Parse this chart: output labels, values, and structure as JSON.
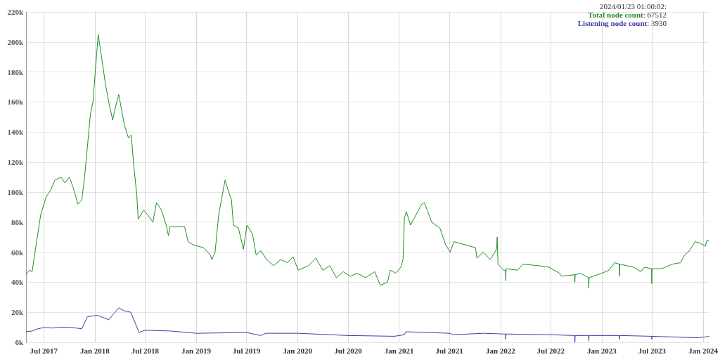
{
  "chart_data": {
    "type": "line",
    "annotations": [
      "2024/01/23 01:00:02:",
      ": 67512",
      ": 3930"
    ],
    "legend": "top right",
    "grid": true,
    "marker": "none",
    "line_style": "solid",
    "xlim": [
      "2017-04-28",
      "2024-01-23"
    ],
    "xticks": [
      {
        "value": "2017-07-01",
        "label": "Jul 2017"
      },
      {
        "value": "2018-01-01",
        "label": "Jan 2018"
      },
      {
        "value": "2018-07-01",
        "label": "Jul 2018"
      },
      {
        "value": "2019-01-01",
        "label": "Jan 2019"
      },
      {
        "value": "2019-07-01",
        "label": "Jul 2019"
      },
      {
        "value": "2020-01-01",
        "label": "Jan 2020"
      },
      {
        "value": "2020-07-01",
        "label": "Jul 2020"
      },
      {
        "value": "2021-01-01",
        "label": "Jan 2021"
      },
      {
        "value": "2021-07-01",
        "label": "Jul 2021"
      },
      {
        "value": "2022-01-01",
        "label": "Jan 2022"
      },
      {
        "value": "2022-07-01",
        "label": "Jul 2022"
      },
      {
        "value": "2023-01-01",
        "label": "Jan 2023"
      },
      {
        "value": "2023-07-01",
        "label": "Jul 2023"
      },
      {
        "value": "2024-01-01",
        "label": "Jan 2024"
      }
    ],
    "ylim": [
      0,
      220000
    ],
    "yticks": [
      {
        "value": 0,
        "label": "0k"
      },
      {
        "value": 20000,
        "label": "20k"
      },
      {
        "value": 40000,
        "label": "40k"
      },
      {
        "value": 60000,
        "label": "60k"
      },
      {
        "value": 80000,
        "label": "80k"
      },
      {
        "value": 100000,
        "label": "100k"
      },
      {
        "value": 120000,
        "label": "120k"
      },
      {
        "value": 140000,
        "label": "140k"
      },
      {
        "value": 160000,
        "label": "160k"
      },
      {
        "value": 180000,
        "label": "180k"
      },
      {
        "value": 200000,
        "label": "200k"
      },
      {
        "value": 220000,
        "label": "220k"
      }
    ],
    "series": [
      {
        "name": "Total node count",
        "color": "#1f8f1f",
        "x": [
          "2017-04-28",
          "2017-05-10",
          "2017-05-20",
          "2017-06-01",
          "2017-06-20",
          "2017-07-10",
          "2017-07-25",
          "2017-08-10",
          "2017-09-01",
          "2017-09-15",
          "2017-10-01",
          "2017-10-15",
          "2017-11-01",
          "2017-11-15",
          "2017-11-25",
          "2017-12-16",
          "2017-12-25",
          "2018-01-13",
          "2018-01-25",
          "2018-02-08",
          "2018-02-20",
          "2018-03-06",
          "2018-03-18",
          "2018-03-28",
          "2018-04-17",
          "2018-05-02",
          "2018-05-12",
          "2018-05-20",
          "2018-06-01",
          "2018-06-06",
          "2018-06-26",
          "2018-07-14",
          "2018-07-29",
          "2018-08-11",
          "2018-08-29",
          "2018-09-15",
          "2018-09-23",
          "2018-09-28",
          "2018-11-20",
          "2018-12-03",
          "2018-12-20",
          "2019-01-27",
          "2019-02-21",
          "2019-02-26",
          "2019-03-10",
          "2019-03-23",
          "2019-04-02",
          "2019-04-15",
          "2019-04-28",
          "2019-05-08",
          "2019-05-15",
          "2019-06-02",
          "2019-06-15",
          "2019-06-20",
          "2019-07-03",
          "2019-07-23",
          "2019-08-05",
          "2019-08-22",
          "2019-09-12",
          "2019-10-07",
          "2019-11-01",
          "2019-11-26",
          "2019-12-16",
          "2020-01-03",
          "2020-02-10",
          "2020-03-07",
          "2020-04-01",
          "2020-04-26",
          "2020-05-20",
          "2020-06-14",
          "2020-07-09",
          "2020-08-03",
          "2020-09-02",
          "2020-10-05",
          "2020-10-25",
          "2020-11-20",
          "2020-11-30",
          "2020-12-20",
          "2021-01-07",
          "2021-01-15",
          "2021-01-20",
          "2021-01-27",
          "2021-02-11",
          "2021-03-23",
          "2021-04-02",
          "2021-04-12",
          "2021-04-28",
          "2021-05-28",
          "2021-06-17",
          "2021-07-04",
          "2021-07-17",
          "2021-10-03",
          "2021-10-08",
          "2021-10-31",
          "2021-11-25",
          "2021-12-18",
          "2021-12-20",
          "2021-12-23",
          "2022-01-12",
          "2022-01-19",
          "2022-01-20",
          "2022-01-21",
          "2022-03-03",
          "2022-03-23",
          "2022-05-17",
          "2022-06-24",
          "2022-08-01",
          "2022-08-09",
          "2022-09-25",
          "2022-09-26",
          "2022-09-27",
          "2022-10-16",
          "2022-11-14",
          "2022-11-15",
          "2022-11-16",
          "2023-01-01",
          "2023-01-27",
          "2023-02-16",
          "2023-03-05",
          "2023-03-06",
          "2023-03-07",
          "2023-04-26",
          "2023-05-21",
          "2023-06-03",
          "2023-06-29",
          "2023-06-30",
          "2023-07-01",
          "2023-08-05",
          "2023-09-11",
          "2023-10-11",
          "2023-10-26",
          "2023-11-13",
          "2023-12-03",
          "2023-12-21",
          "2024-01-08",
          "2024-01-15",
          "2024-01-23"
        ],
        "values": [
          45000,
          48000,
          47000,
          62000,
          85000,
          97000,
          101000,
          108000,
          110000,
          106000,
          110000,
          103000,
          92000,
          95000,
          110000,
          152000,
          160000,
          205000,
          190000,
          172000,
          160000,
          148000,
          158000,
          165000,
          145000,
          136000,
          138000,
          120000,
          98000,
          82000,
          88000,
          84000,
          80000,
          93000,
          88000,
          78000,
          71000,
          77000,
          77000,
          67000,
          65000,
          63000,
          58000,
          55000,
          60000,
          85000,
          95000,
          108000,
          100000,
          95000,
          78000,
          76000,
          66000,
          62000,
          78000,
          72000,
          58000,
          61000,
          55000,
          51000,
          55000,
          53000,
          57000,
          48000,
          51000,
          56000,
          48000,
          51000,
          43000,
          47000,
          44000,
          46000,
          43000,
          47000,
          38000,
          40000,
          48000,
          46000,
          50000,
          55000,
          83000,
          87000,
          78000,
          92000,
          93000,
          88000,
          80000,
          76000,
          65000,
          60000,
          67000,
          63000,
          56000,
          60000,
          55000,
          62000,
          70000,
          52000,
          48000,
          48000,
          41000,
          49000,
          48000,
          52000,
          51000,
          50000,
          46000,
          44000,
          45000,
          40000,
          45000,
          46000,
          43000,
          36000,
          43000,
          46000,
          48000,
          53000,
          52000,
          44000,
          52000,
          50000,
          47000,
          50000,
          49000,
          39000,
          49000,
          49000,
          52000,
          53000,
          58000,
          61000,
          67000,
          66000,
          64000,
          68000,
          67500
        ]
      },
      {
        "name": "Listening node count",
        "color": "#3b3ba8",
        "x": [
          "2017-04-28",
          "2017-05-20",
          "2017-06-10",
          "2017-07-01",
          "2017-08-01",
          "2017-09-01",
          "2017-10-01",
          "2017-11-15",
          "2017-12-05",
          "2018-01-10",
          "2018-02-20",
          "2018-03-10",
          "2018-03-28",
          "2018-04-15",
          "2018-05-10",
          "2018-06-04",
          "2018-06-08",
          "2018-07-01",
          "2018-10-01",
          "2019-01-01",
          "2019-07-01",
          "2019-08-20",
          "2019-09-10",
          "2020-01-01",
          "2020-07-01",
          "2020-12-15",
          "2021-01-20",
          "2021-01-25",
          "2021-07-01",
          "2021-07-15",
          "2021-11-01",
          "2022-01-10",
          "2022-01-19",
          "2022-01-20",
          "2022-01-21",
          "2022-07-01",
          "2022-09-25",
          "2022-09-26",
          "2022-09-27",
          "2022-11-14",
          "2022-11-15",
          "2022-11-16",
          "2023-03-05",
          "2023-03-06",
          "2023-03-07",
          "2023-06-29",
          "2023-06-30",
          "2023-07-01",
          "2023-12-15",
          "2024-01-23"
        ],
        "values": [
          7000,
          7500,
          9000,
          9800,
          9500,
          10000,
          10000,
          9000,
          17000,
          18000,
          15000,
          19000,
          23000,
          21000,
          20000,
          9000,
          6500,
          8000,
          7500,
          6000,
          6500,
          4500,
          6000,
          6000,
          4500,
          4000,
          5000,
          7000,
          6000,
          5000,
          6000,
          5500,
          5500,
          2000,
          5500,
          5000,
          4500,
          0,
          4500,
          4500,
          1000,
          4500,
          4500,
          2000,
          4500,
          4000,
          2000,
          4000,
          3000,
          3900
        ]
      }
    ]
  }
}
